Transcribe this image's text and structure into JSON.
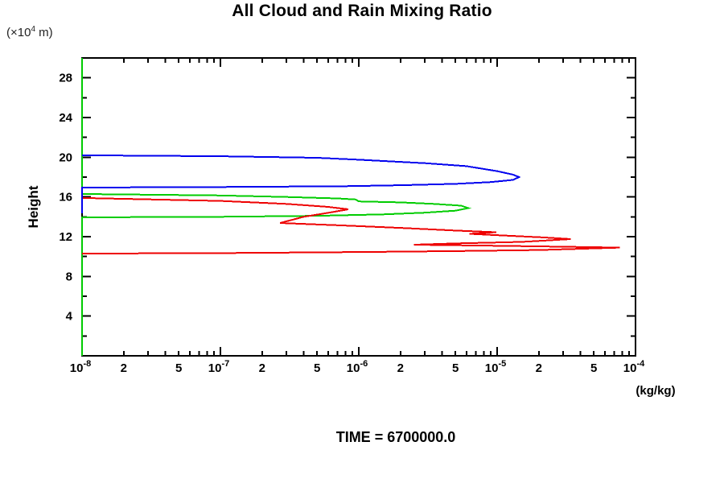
{
  "header": {
    "title": "All Cloud and Rain Mixing Ratio",
    "y_unit_prefix": "(×10",
    "y_unit_exp": "4",
    "y_unit_suffix": " m)"
  },
  "footer": {
    "time_label": "TIME = 6700000.0"
  },
  "chart_data": {
    "type": "line",
    "title": "All Cloud and Rain Mixing Ratio",
    "xlabel": "(kg/kg)",
    "ylabel": "Height",
    "ylabel_unit": "(x10^4 m)",
    "x_scale": "log",
    "xlim": [
      1e-08,
      0.0001
    ],
    "ylim": [
      0,
      30
    ],
    "grid": false,
    "legend_position": "none",
    "x_decade_exponents": [
      -8,
      -7,
      -6,
      -5,
      -4
    ],
    "x_decade_mantissa": "10",
    "x_sub_tick_labels": [
      "2",
      "5"
    ],
    "x_minor_tick_multiples": [
      2,
      3,
      4,
      5,
      6,
      7,
      8,
      9
    ],
    "y_major_ticks": [
      4,
      8,
      12,
      16,
      20,
      24,
      28
    ],
    "y_minor_ticks": [
      2,
      6,
      10,
      14,
      18,
      22,
      26
    ],
    "axis_color": "#000000",
    "series": [
      {
        "name": "green-mixing-ratio-profile",
        "color": "#00cc00",
        "points": [
          [
            1e-08,
            30
          ],
          [
            1e-08,
            16.3
          ],
          [
            1e-07,
            16.15
          ],
          [
            3e-07,
            16.0
          ],
          [
            7e-07,
            15.85
          ],
          [
            9.5e-07,
            15.75
          ],
          [
            1e-06,
            15.55
          ],
          [
            2e-06,
            15.45
          ],
          [
            3.5e-06,
            15.3
          ],
          [
            5.5e-06,
            15.12
          ],
          [
            6.2e-06,
            14.88
          ],
          [
            5e-06,
            14.62
          ],
          [
            3e-06,
            14.42
          ],
          [
            1.5e-06,
            14.25
          ],
          [
            5e-07,
            14.1
          ],
          [
            1e-07,
            14.0
          ],
          [
            1e-08,
            13.95
          ],
          [
            1e-08,
            0
          ]
        ]
      },
      {
        "name": "red-mixing-ratio-profile",
        "color": "#ee0000",
        "points": [
          [
            1e-08,
            15.9
          ],
          [
            1e-07,
            15.6
          ],
          [
            3e-07,
            15.3
          ],
          [
            6e-07,
            15.0
          ],
          [
            8.4e-07,
            14.76
          ],
          [
            6e-07,
            14.4
          ],
          [
            4e-07,
            14.0
          ],
          [
            2.7e-07,
            13.38
          ],
          [
            8e-07,
            13.12
          ],
          [
            2e-06,
            12.88
          ],
          [
            5e-06,
            12.62
          ],
          [
            9.9e-06,
            12.45
          ],
          [
            8e-06,
            12.37
          ],
          [
            6.3e-06,
            12.28
          ],
          [
            1.2e-05,
            12.1
          ],
          [
            2.2e-05,
            11.92
          ],
          [
            3.4e-05,
            11.76
          ],
          [
            1.5e-05,
            11.47
          ],
          [
            5e-06,
            11.32
          ],
          [
            2.5e-06,
            11.19
          ],
          [
            8e-06,
            11.1
          ],
          [
            2.5e-05,
            11.0
          ],
          [
            7.7e-05,
            10.9
          ],
          [
            2e-05,
            10.65
          ],
          [
            5e-06,
            10.55
          ],
          [
            1e-06,
            10.45
          ],
          [
            1e-07,
            10.35
          ],
          [
            1e-08,
            10.3
          ]
        ]
      },
      {
        "name": "blue-mixing-ratio-profile",
        "color": "#0000ee",
        "points": [
          [
            1e-08,
            20.2
          ],
          [
            1e-07,
            20.1
          ],
          [
            5e-07,
            19.95
          ],
          [
            1e-06,
            19.75
          ],
          [
            3e-06,
            19.4
          ],
          [
            6e-06,
            19.1
          ],
          [
            1e-05,
            18.6
          ],
          [
            1.3e-05,
            18.25
          ],
          [
            1.44e-05,
            18.0
          ],
          [
            1.3e-05,
            17.72
          ],
          [
            9e-06,
            17.5
          ],
          [
            5e-06,
            17.32
          ],
          [
            2e-06,
            17.18
          ],
          [
            8e-07,
            17.08
          ],
          [
            1e-07,
            17.0
          ],
          [
            1e-08,
            16.95
          ],
          [
            1e-08,
            14.35
          ]
        ]
      }
    ]
  }
}
